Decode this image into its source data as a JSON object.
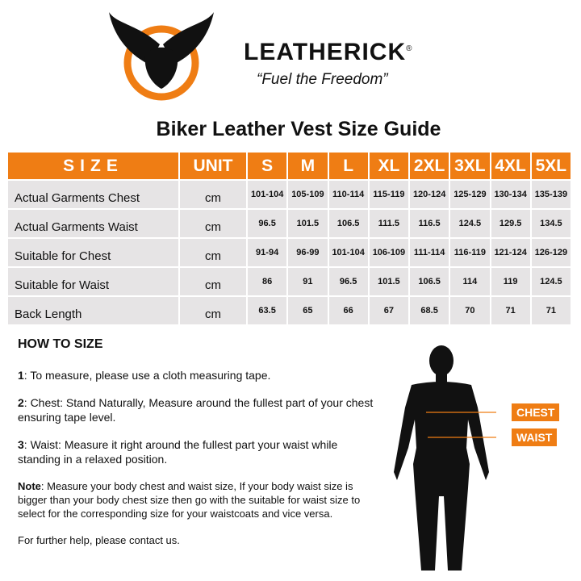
{
  "brand": {
    "name": "LEATHERICK",
    "reg": "®",
    "tagline": "“Fuel the Freedom”",
    "accent": "#ef7d14"
  },
  "title": "Biker Leather Vest Size Guide",
  "table": {
    "headers": [
      "SIZE",
      "UNIT",
      "S",
      "M",
      "L",
      "XL",
      "2XL",
      "3XL",
      "4XL",
      "5XL"
    ],
    "rows": [
      {
        "label": "Actual Garments Chest",
        "unit": "cm",
        "values": [
          "101-104",
          "105-109",
          "110-114",
          "115-119",
          "120-124",
          "125-129",
          "130-134",
          "135-139"
        ]
      },
      {
        "label": "Actual Garments Waist",
        "unit": "cm",
        "values": [
          "96.5",
          "101.5",
          "106.5",
          "111.5",
          "116.5",
          "124.5",
          "129.5",
          "134.5"
        ]
      },
      {
        "label": "Suitable for Chest",
        "unit": "cm",
        "values": [
          "91-94",
          "96-99",
          "101-104",
          "106-109",
          "111-114",
          "116-119",
          "121-124",
          "126-129"
        ]
      },
      {
        "label": "Suitable for Waist",
        "unit": "cm",
        "values": [
          "86",
          "91",
          "96.5",
          "101.5",
          "106.5",
          "114",
          "119",
          "124.5"
        ]
      },
      {
        "label": "Back Length",
        "unit": "cm",
        "values": [
          "63.5",
          "65",
          "66",
          "67",
          "68.5",
          "70",
          "71",
          "71"
        ]
      }
    ]
  },
  "howto": {
    "heading": "HOW TO SIZE",
    "steps": [
      {
        "num": "1",
        "text": ": To measure, please use a cloth measuring tape."
      },
      {
        "num": "2",
        "text": ": Chest: Stand Naturally, Measure around the fullest part of your chest ensuring tape level."
      },
      {
        "num": "3",
        "text": ": Waist: Measure it right around the fullest part your waist while standing in a relaxed position."
      }
    ],
    "note_label": "Note",
    "note": ": Measure your body chest and waist size, If your body waist size is bigger than your body chest size then go with the suitable for waist size to select for the corresponding size for your waistcoats and vice versa.",
    "contact": "For further help, please contact us."
  },
  "figure": {
    "chest_label": "CHEST",
    "waist_label": "WAIST"
  }
}
